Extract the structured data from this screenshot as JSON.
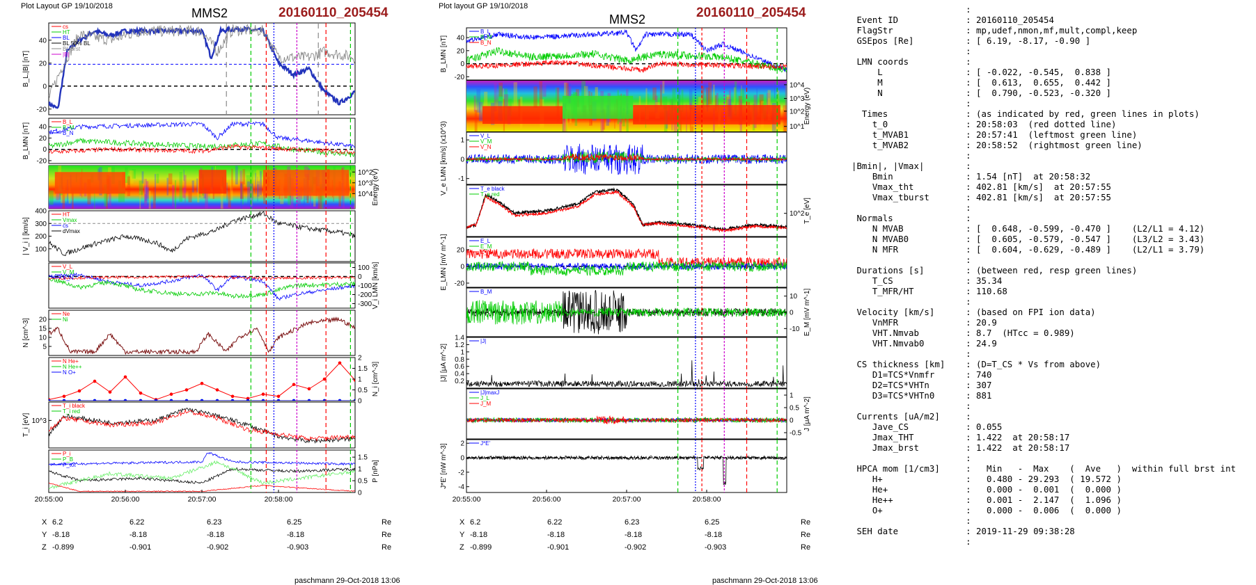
{
  "left": {
    "layout_label": "Plot Layout GP 19/10/2018",
    "title": "MMS2",
    "event": "20160110_205454",
    "xticks": [
      "20:55:00",
      "20:56:00",
      "20:57:00",
      "20:58:00"
    ],
    "coord_rows": [
      {
        "name": "X",
        "vals": [
          "6.2",
          "6.22",
          "6.23",
          "6.25"
        ],
        "unit": "Re"
      },
      {
        "name": "Y",
        "vals": [
          "-8.18",
          "-8.18",
          "-8.18",
          "-8.18"
        ],
        "unit": "Re"
      },
      {
        "name": "Z",
        "vals": [
          "-0.899",
          "-0.901",
          "-0.902",
          "-0.903"
        ],
        "unit": "Re"
      }
    ],
    "footer": "paschmann 29-Oct-2018 13:06"
  },
  "mid": {
    "layout_label": "Plot layout GP 19/10/2018",
    "title": "MMS2",
    "event": "20160110_205454",
    "xticks": [
      "20:55:00",
      "20:56:00",
      "20:57:00",
      "20:58:00"
    ],
    "coord_rows": [
      {
        "name": "X",
        "vals": [
          "6.2",
          "6.22",
          "6.23",
          "6.25"
        ],
        "unit": "Re"
      },
      {
        "name": "Y",
        "vals": [
          "-8.18",
          "-8.18",
          "-8.18",
          "-8.18"
        ],
        "unit": "Re"
      },
      {
        "name": "Z",
        "vals": [
          "-0.899",
          "-0.901",
          "-0.902",
          "-0.903"
        ],
        "unit": "Re"
      }
    ],
    "footer": "paschmann 29-Oct-2018 13:06"
  },
  "colors": {
    "red": "#ff0000",
    "green": "#00cc00",
    "blue": "#0000ff",
    "black": "#000000",
    "magenta": "#cc00cc",
    "gray": "#888888",
    "thickblue": "#2233bb",
    "lightgreen": "#66ee66",
    "lightred": "#ff6666"
  },
  "chart_data": [
    {
      "type": "line",
      "panel": "left-1",
      "ylabel": "B_L,|B| [nT]",
      "ylim": [
        -25,
        55
      ],
      "yticks": [
        -20,
        0,
        20,
        40
      ],
      "series": [
        {
          "name": "cs"
        },
        {
          "name": "HT"
        },
        {
          "name": "BL"
        },
        {
          "name": "BL 50% BL"
        },
        {
          "name": "BL brst"
        },
        {
          "name": "|B|"
        }
      ]
    },
    {
      "type": "line",
      "panel": "left-2",
      "ylabel": "B_LMN [nT]",
      "ylim": [
        -25,
        55
      ],
      "yticks": [
        -20,
        0,
        20,
        40
      ],
      "series": [
        {
          "name": "B_L"
        },
        {
          "name": "B_M"
        },
        {
          "name": "B_N"
        }
      ]
    },
    {
      "type": "heatmap",
      "panel": "left-3",
      "ylabel": "Energy (eV)",
      "yticks": [
        "10^2",
        "10^3",
        "10^4"
      ]
    },
    {
      "type": "line",
      "panel": "left-4",
      "ylabel": "| V_i | [km/s]",
      "ylim": [
        0,
        400
      ],
      "yticks": [
        100,
        200,
        300,
        400
      ],
      "series": [
        {
          "name": "HT"
        },
        {
          "name": "Vmax"
        },
        {
          "name": "cs"
        },
        {
          "name": "dVmax"
        }
      ]
    },
    {
      "type": "line",
      "panel": "left-5",
      "ylabel": "V_i LMN [km/s]",
      "ylim": [
        -350,
        150
      ],
      "yticks": [
        100,
        0,
        -100,
        -200,
        -300
      ],
      "series": [
        {
          "name": "V_L"
        },
        {
          "name": "V_M"
        },
        {
          "name": "V_N"
        }
      ]
    },
    {
      "type": "line",
      "panel": "left-6",
      "ylabel": "N [cm^-3]",
      "ylim": [
        0,
        25
      ],
      "yticks": [
        5,
        10,
        15,
        20
      ],
      "series": [
        {
          "name": "Ne"
        },
        {
          "name": "Ni"
        }
      ]
    },
    {
      "type": "line",
      "panel": "left-7",
      "ylabel": "N_i [cm^-3]",
      "ylim": [
        0,
        2
      ],
      "yticks": [
        0.0,
        0.5,
        1.0,
        1.5,
        2.0
      ],
      "series": [
        {
          "name": "N He+",
          "values": [
            0,
            0,
            0,
            0,
            0,
            0,
            0,
            0,
            0,
            0,
            0,
            0,
            0,
            0,
            0,
            0,
            0,
            0,
            0,
            0,
            0
          ]
        },
        {
          "name": "N He++",
          "values": [
            0.05,
            0.2,
            0.45,
            0.9,
            0.4,
            1.1,
            0.35,
            0.05,
            0.3,
            0.5,
            0.8,
            0.5,
            0.2,
            0.1,
            0.3,
            0.2,
            0.75,
            0.55,
            1.0,
            1.75,
            0.95
          ]
        },
        {
          "name": "N O+",
          "values": [
            0,
            0,
            0,
            0,
            0,
            0,
            0,
            0,
            0,
            0,
            0,
            0,
            0,
            0,
            0,
            0,
            0,
            0,
            0,
            0,
            0
          ]
        }
      ]
    },
    {
      "type": "line",
      "panel": "left-8",
      "ylabel": "T_i [eV]",
      "yticks": [
        "10^3"
      ],
      "series": [
        {
          "name": "T_i black"
        },
        {
          "name": "T_i red"
        }
      ]
    },
    {
      "type": "line",
      "panel": "left-9",
      "ylabel": "P [nPa]",
      "ylim": [
        0,
        1.8
      ],
      "yticks": [
        0.0,
        0.5,
        1.0,
        1.5
      ],
      "series": [
        {
          "name": "P_i"
        },
        {
          "name": "P_B"
        },
        {
          "name": "P_tot"
        }
      ]
    },
    {
      "type": "line",
      "panel": "mid-1",
      "ylabel": "B_LMN [nT]",
      "ylim": [
        -25,
        55
      ],
      "yticks": [
        -20,
        0,
        20,
        40
      ],
      "series": [
        {
          "name": "B_L"
        },
        {
          "name": "B_M"
        },
        {
          "name": "B_N"
        }
      ]
    },
    {
      "type": "heatmap",
      "panel": "mid-2",
      "ylabel": "Energy (eV)",
      "yticks": [
        "10^1",
        "10^2",
        "10^3",
        "10^4"
      ]
    },
    {
      "type": "line",
      "panel": "mid-3",
      "ylabel": "V_e LMN [km/s] (x10^3)",
      "ylim": [
        -1.3,
        1.4
      ],
      "yticks": [
        -1,
        0,
        1
      ],
      "series": [
        {
          "name": "V_L"
        },
        {
          "name": "V_M"
        },
        {
          "name": "V_N"
        }
      ]
    },
    {
      "type": "line",
      "panel": "mid-4",
      "ylabel": "T_e [eV]",
      "yticks": [
        "10^2"
      ],
      "series": [
        {
          "name": "T_e black"
        },
        {
          "name": "T_e red"
        }
      ]
    },
    {
      "type": "line",
      "panel": "mid-5",
      "ylabel": "E_LMN [mV m^-1]",
      "ylim": [
        -25,
        35
      ],
      "yticks": [
        -20,
        0,
        20
      ],
      "series": [
        {
          "name": "E_L"
        },
        {
          "name": "E_M"
        },
        {
          "name": "E_N"
        }
      ]
    },
    {
      "type": "line",
      "panel": "mid-6",
      "ylabel": "E_M [mV m^-1]",
      "ylim": [
        -15,
        15
      ],
      "yticks": [
        -10,
        0,
        10
      ],
      "series": [
        {
          "name": "B_M"
        }
      ]
    },
    {
      "type": "line",
      "panel": "mid-7",
      "ylabel": "|J| [μA m^-2]",
      "ylim": [
        0,
        1.4
      ],
      "yticks": [
        0.2,
        0.4,
        0.6,
        0.8,
        1.0,
        1.2,
        1.4
      ],
      "series": [
        {
          "name": "|J|"
        }
      ]
    },
    {
      "type": "line",
      "panel": "mid-8",
      "ylabel": "J [μA m^-2]",
      "ylim": [
        -0.75,
        1.25
      ],
      "yticks": [
        -0.5,
        0.0,
        0.5,
        1.0
      ],
      "series": [
        {
          "name": "|J|maxJ"
        },
        {
          "name": "J_L"
        },
        {
          "name": "J_M"
        }
      ]
    },
    {
      "type": "line",
      "panel": "mid-9",
      "ylabel": "J*E' [nW m^-3]",
      "ylim": [
        -4.8,
        2.5
      ],
      "yticks": [
        -4,
        -2,
        0,
        2
      ],
      "series": [
        {
          "name": "J*E'"
        }
      ]
    }
  ],
  "info_rows": [
    {
      "k": "",
      "v": ""
    },
    {
      "k": " Event ID",
      "v": "20160110_205454"
    },
    {
      "k": " FlagStr",
      "v": "mp,udef,nmon,mf,mult,compl,keep"
    },
    {
      "k": " GSEpos [Re]",
      "v": "[ 6.19, -8.17, -0.90 ]"
    },
    {
      "k": "",
      "v": ""
    },
    {
      "k": " LMN coords",
      "v": ""
    },
    {
      "k": "     L",
      "v": "[ -0.022, -0.545,  0.838 ]"
    },
    {
      "k": "     M",
      "v": "[  0.613,  0.655,  0.442 ]"
    },
    {
      "k": "     N",
      "v": "[  0.790, -0.523, -0.320 ]"
    },
    {
      "k": "",
      "v": ""
    },
    {
      "k": "  Times",
      "v": "(as indicated by red, green lines in plots)"
    },
    {
      "k": "    t_0",
      "v": "20:58:03  (red dotted line)"
    },
    {
      "k": "    t_MVAB1",
      "v": "20:57:41  (leftmost green line)"
    },
    {
      "k": "    t_MVAB2",
      "v": "20:58:52  (rightmost green line)"
    },
    {
      "k": "",
      "v": ""
    },
    {
      "k": "|Bmin|, |Vmax|",
      "v": ""
    },
    {
      "k": "    Bmin",
      "v": "1.54 [nT]  at 20:58:32"
    },
    {
      "k": "    Vmax_tht",
      "v": "402.81 [km/s]  at 20:57:55"
    },
    {
      "k": "    Vmax_tburst",
      "v": "402.81 [km/s]  at 20:57:55"
    },
    {
      "k": "",
      "v": ""
    },
    {
      "k": " Normals",
      "v": ""
    },
    {
      "k": "    N MVAB",
      "v": "[  0.648, -0.599, -0.470 ]    (L2/L1 = 4.12)"
    },
    {
      "k": "    N MVAB0",
      "v": "[  0.605, -0.579, -0.547 ]    (L3/L2 = 3.43)"
    },
    {
      "k": "    N MFR",
      "v": "[  0.604, -0.629, -0.489 ]    (L2/L1 = 3.79)"
    },
    {
      "k": "",
      "v": ""
    },
    {
      "k": " Durations [s]",
      "v": "(between red, resp green lines)"
    },
    {
      "k": "    T_CS",
      "v": "35.34"
    },
    {
      "k": "    T_MFR/HT",
      "v": "110.68"
    },
    {
      "k": "",
      "v": ""
    },
    {
      "k": " Velocity [km/s]",
      "v": "(based on FPI ion data)"
    },
    {
      "k": "    VnMFR",
      "v": "20.9"
    },
    {
      "k": "    VHT.Nmvab",
      "v": "8.7  (HTcc = 0.989)"
    },
    {
      "k": "    VHT.Nmvab0",
      "v": "24.9"
    },
    {
      "k": "",
      "v": ""
    },
    {
      "k": " CS thickness [km]",
      "v": "(D=T_CS * Vs from above)"
    },
    {
      "k": "    D1=TCS*Vnmfr",
      "v": "740"
    },
    {
      "k": "    D2=TCS*VHTn",
      "v": "307"
    },
    {
      "k": "    D3=TCS*VHTn0",
      "v": "881"
    },
    {
      "k": "",
      "v": ""
    },
    {
      "k": " Currents [uA/m2]",
      "v": ""
    },
    {
      "k": "    Jave_CS",
      "v": "0.055"
    },
    {
      "k": "    Jmax_THT",
      "v": "1.422  at 20:58:17"
    },
    {
      "k": "    Jmax_brst",
      "v": "1.422  at 20:58:17"
    },
    {
      "k": "",
      "v": ""
    },
    {
      "k": " HPCA mom [1/cm3]",
      "v": "  Min   -  Max    (  Ave   )  within full brst int"
    },
    {
      "k": "    H+",
      "v": "  0.480 - 29.293  ( 19.572 )"
    },
    {
      "k": "    He+",
      "v": "  0.000 -  0.001  (  0.000 )"
    },
    {
      "k": "    He++",
      "v": "  0.001 -  2.147  (  1.096 )"
    },
    {
      "k": "    O+",
      "v": "  0.000 -  0.006  (  0.000 )"
    },
    {
      "k": "",
      "v": ""
    },
    {
      "k": " SEH date",
      "v": "2019-11-29 09:38:28"
    },
    {
      "k": "",
      "v": ""
    }
  ]
}
